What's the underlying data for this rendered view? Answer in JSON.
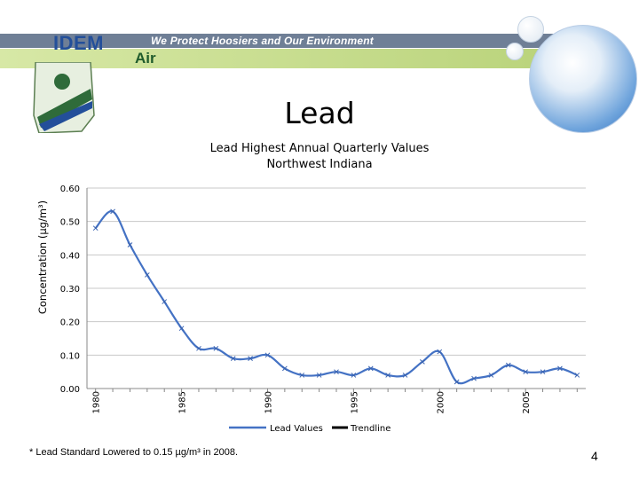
{
  "banner": {
    "logo_text": "IDEM",
    "slogan": "We Protect Hoosiers and Our Environment",
    "section": "Air"
  },
  "slide": {
    "title": "Lead",
    "page_number": "4",
    "footnote": "* Lead Standard Lowered to 0.15 µg/m³ in 2008."
  },
  "chart_data": {
    "type": "line",
    "title": "Lead Highest Annual Quarterly Values",
    "subtitle": "Northwest Indiana",
    "ylabel": "Concentration (µg/m³)",
    "xlabel": "",
    "ylim": [
      0,
      0.6
    ],
    "xlim": [
      1979.5,
      2008.5
    ],
    "y_ticks": [
      "0.00",
      "0.10",
      "0.20",
      "0.30",
      "0.40",
      "0.50",
      "0.60"
    ],
    "x_ticks": [
      "1980",
      "1985",
      "1990",
      "1995",
      "2000",
      "2005"
    ],
    "grid": true,
    "legend_position": "bottom",
    "series": [
      {
        "name": "Lead Values",
        "color": "#4472C4",
        "x": [
          1980,
          1981,
          1982,
          1983,
          1984,
          1985,
          1986,
          1987,
          1988,
          1989,
          1990,
          1991,
          1992,
          1993,
          1994,
          1995,
          1996,
          1997,
          1998,
          1999,
          2000,
          2001,
          2002,
          2003,
          2004,
          2005,
          2006,
          2007,
          2008
        ],
        "values": [
          0.48,
          0.53,
          0.43,
          0.34,
          0.26,
          0.18,
          0.12,
          0.12,
          0.09,
          0.09,
          0.1,
          0.06,
          0.04,
          0.04,
          0.05,
          0.04,
          0.06,
          0.04,
          0.04,
          0.08,
          0.11,
          0.02,
          0.03,
          0.04,
          0.07,
          0.05,
          0.05,
          0.06,
          0.04
        ]
      },
      {
        "name": "Trendline",
        "color": "#000000",
        "values": []
      }
    ]
  }
}
